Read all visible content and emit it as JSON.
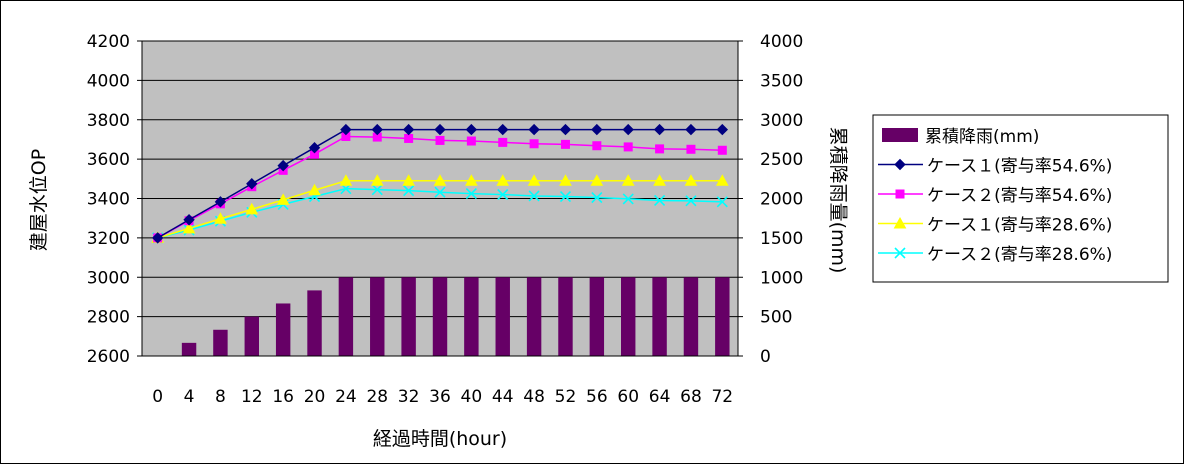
{
  "chart_data": {
    "type": "bar+line",
    "x": [
      0,
      4,
      8,
      12,
      16,
      20,
      24,
      28,
      32,
      36,
      40,
      44,
      48,
      52,
      56,
      60,
      64,
      68,
      72
    ],
    "xlabel": "経過時間(hour)",
    "ylabel": "建屋水位OP",
    "y2label": "累積降雨量(mm)",
    "ylim": [
      2600,
      4200
    ],
    "yticks": [
      2600,
      2800,
      3000,
      3200,
      3400,
      3600,
      3800,
      4000,
      4200
    ],
    "y2lim": [
      0,
      4000
    ],
    "y2ticks": [
      0,
      500,
      1000,
      1500,
      2000,
      2500,
      3000,
      3500,
      4000
    ],
    "plot_background": "#c0c0c0",
    "grid": "horizontal",
    "legend_position": "right",
    "bar_series": {
      "name": "累積降雨(mm)",
      "axis": "right",
      "color": "#660066",
      "values": [
        0,
        167,
        333,
        500,
        667,
        833,
        1000,
        1000,
        1000,
        1000,
        1000,
        1000,
        1000,
        1000,
        1000,
        1000,
        1000,
        1000,
        1000
      ]
    },
    "series": [
      {
        "name": "ケース１(寄与率54.6%)",
        "axis": "left",
        "color": "#000080",
        "marker": "diamond",
        "values": [
          3200,
          3292,
          3383,
          3475,
          3567,
          3658,
          3750,
          3750,
          3750,
          3750,
          3750,
          3750,
          3750,
          3750,
          3750,
          3750,
          3750,
          3750,
          3750
        ]
      },
      {
        "name": "ケース２(寄与率54.6%)",
        "axis": "left",
        "color": "#ff00ff",
        "marker": "square",
        "values": [
          3200,
          3287,
          3373,
          3460,
          3543,
          3625,
          3715,
          3712,
          3705,
          3695,
          3692,
          3685,
          3678,
          3675,
          3668,
          3662,
          3652,
          3650,
          3645
        ]
      },
      {
        "name": "ケース１(寄与率28.6%)",
        "axis": "left",
        "color": "#ffff00",
        "marker": "triangle",
        "values": [
          3200,
          3248,
          3297,
          3345,
          3393,
          3442,
          3490,
          3490,
          3490,
          3490,
          3490,
          3490,
          3490,
          3490,
          3490,
          3490,
          3490,
          3490,
          3490
        ]
      },
      {
        "name": "ケース２(寄与率28.6%)",
        "axis": "left",
        "color": "#00ffff",
        "marker": "x",
        "values": [
          3200,
          3240,
          3285,
          3330,
          3370,
          3410,
          3450,
          3445,
          3440,
          3432,
          3425,
          3420,
          3413,
          3410,
          3405,
          3398,
          3390,
          3388,
          3383
        ]
      }
    ]
  }
}
